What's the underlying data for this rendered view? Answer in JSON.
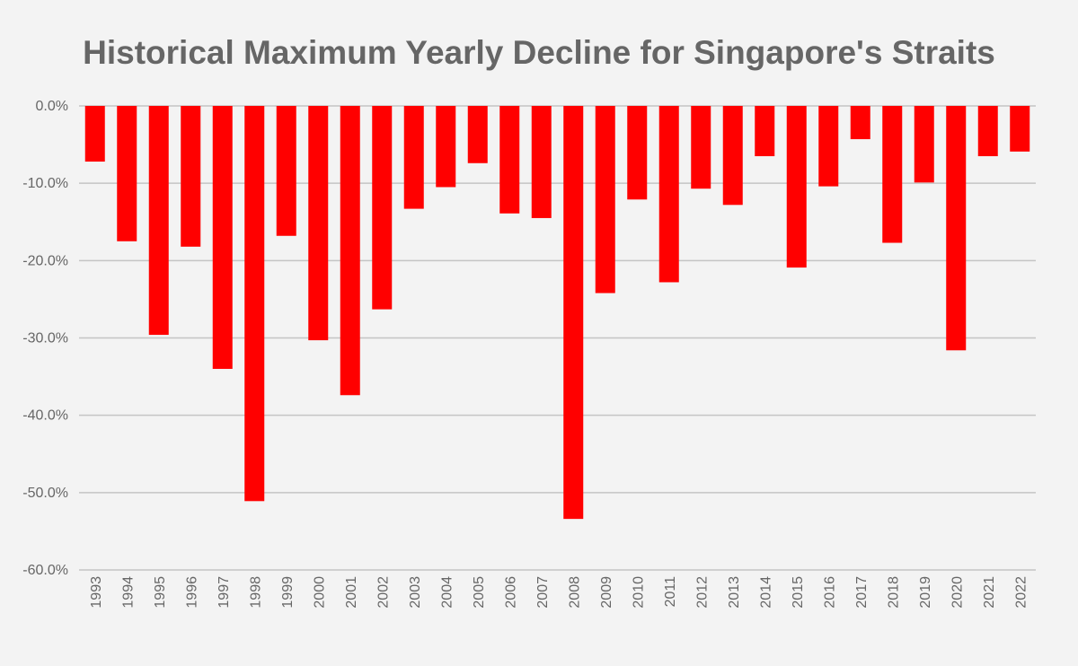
{
  "chart_data": {
    "type": "bar",
    "title": "Historical Maximum Yearly Decline for Singapore's Straits",
    "xlabel": "",
    "ylabel": "",
    "categories": [
      "1993",
      "1994",
      "1995",
      "1996",
      "1997",
      "1998",
      "1999",
      "2000",
      "2001",
      "2002",
      "2003",
      "2004",
      "2005",
      "2006",
      "2007",
      "2008",
      "2009",
      "2010",
      "2011",
      "2012",
      "2013",
      "2014",
      "2015",
      "2016",
      "2017",
      "2018",
      "2019",
      "2020",
      "2021",
      "2022"
    ],
    "values": [
      -7.2,
      -17.5,
      -29.6,
      -18.2,
      -34.0,
      -51.1,
      -16.8,
      -30.3,
      -37.4,
      -26.3,
      -13.3,
      -10.5,
      -7.4,
      -13.9,
      -14.5,
      -53.4,
      -24.2,
      -12.1,
      -22.8,
      -10.7,
      -12.8,
      -6.5,
      -20.9,
      -10.4,
      -4.3,
      -17.7,
      -9.9,
      -31.6,
      -6.5,
      -5.9
    ],
    "ylim": [
      -60,
      0
    ],
    "yticks": [
      "0.0%",
      "-10.0%",
      "-20.0%",
      "-30.0%",
      "-40.0%",
      "-50.0%",
      "-60.0%"
    ],
    "ytick_values": [
      0,
      -10,
      -20,
      -30,
      -40,
      -50,
      -60
    ],
    "grid": true,
    "legend": "none",
    "colors": {
      "bar": "#ff0000",
      "background": "#f3f3f3",
      "grid": "#c4c4c4",
      "text": "#666666"
    }
  }
}
